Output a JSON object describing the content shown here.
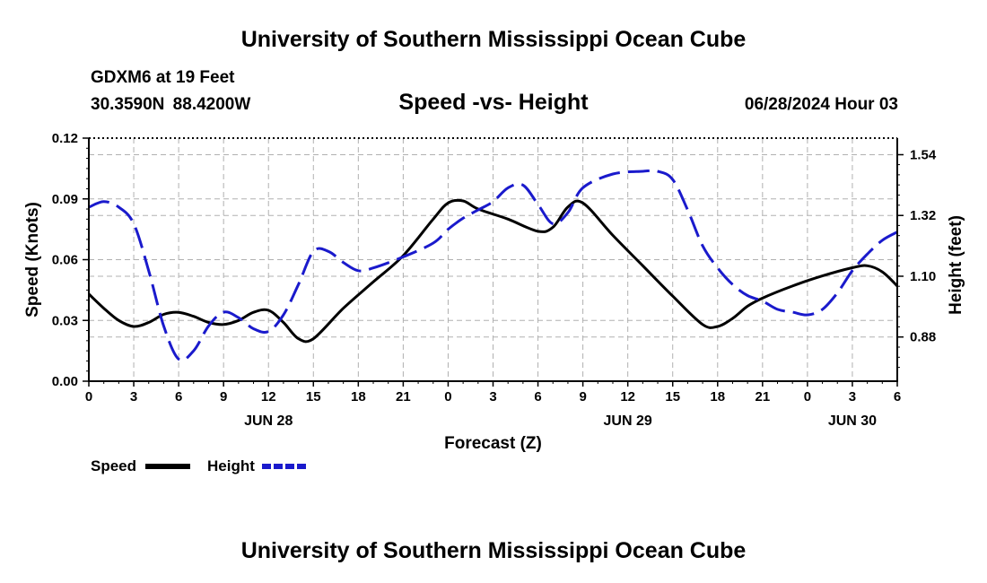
{
  "header": {
    "title": "University of Southern Mississippi Ocean Cube",
    "station": "GDXM6 at 19 Feet",
    "coordinates": "30.3590N  88.4200W",
    "subtitle": "Speed -vs- Height",
    "datetime": "06/28/2024 Hour 03"
  },
  "footer": {
    "title": "University of Southern Mississippi Ocean Cube"
  },
  "colors": {
    "speed": "#000000",
    "height": "#1a1acc",
    "grid": "#b0b0b0"
  },
  "chart_data": {
    "type": "line",
    "title": "Speed -vs- Height",
    "xlabel": "Forecast (Z)",
    "ylabel": "Speed (Knots)",
    "y2label": "Height (feet)",
    "x_units": "hours since 2024-06-28 00Z",
    "xlim": [
      0,
      54
    ],
    "ylim": [
      0,
      0.12
    ],
    "y2lim": [
      0.72,
      1.6
    ],
    "xticks": [
      0,
      3,
      6,
      9,
      12,
      15,
      18,
      21,
      24,
      27,
      30,
      33,
      36,
      39,
      42,
      45,
      48,
      51,
      54
    ],
    "xtick_labels": [
      "0",
      "3",
      "6",
      "9",
      "12",
      "15",
      "18",
      "21",
      "0",
      "3",
      "6",
      "9",
      "12",
      "15",
      "18",
      "21",
      "0",
      "3",
      "6"
    ],
    "yticks": [
      0,
      0.03,
      0.06,
      0.09,
      0.12
    ],
    "ytick_labels": [
      "0.00",
      "0.03",
      "0.06",
      "0.09",
      "0.12"
    ],
    "y2ticks": [
      0.88,
      1.1,
      1.32,
      1.54
    ],
    "y2tick_labels": [
      "0.88",
      "1.10",
      "1.32",
      "1.54"
    ],
    "day_labels": [
      {
        "x": 12,
        "label": "JUN 28"
      },
      {
        "x": 36,
        "label": "JUN 29"
      },
      {
        "x": 51,
        "label": "JUN 30"
      }
    ],
    "legend": [
      "Speed",
      "Height"
    ],
    "series": [
      {
        "name": "Speed",
        "axis": "left",
        "style": "solid",
        "x": [
          0,
          1,
          2,
          3,
          4,
          5,
          6,
          7,
          8,
          9,
          10,
          11,
          12,
          13,
          14,
          15,
          17,
          19,
          21,
          23,
          24,
          25,
          26,
          28,
          30,
          31,
          32,
          33,
          35,
          37,
          39,
          41,
          42,
          43,
          44,
          45,
          47,
          49,
          51,
          52,
          53,
          54
        ],
        "values": [
          0.043,
          0.036,
          0.03,
          0.027,
          0.029,
          0.033,
          0.034,
          0.032,
          0.029,
          0.028,
          0.03,
          0.034,
          0.035,
          0.029,
          0.021,
          0.021,
          0.036,
          0.049,
          0.062,
          0.08,
          0.088,
          0.089,
          0.085,
          0.08,
          0.074,
          0.076,
          0.086,
          0.088,
          0.072,
          0.057,
          0.042,
          0.028,
          0.027,
          0.031,
          0.037,
          0.041,
          0.047,
          0.052,
          0.056,
          0.057,
          0.054,
          0.047
        ]
      },
      {
        "name": "Height",
        "axis": "right",
        "style": "dashed",
        "x": [
          0,
          1,
          2,
          3,
          4,
          5,
          6,
          7,
          8,
          9,
          10,
          11,
          12,
          13,
          14,
          15,
          16,
          17,
          18,
          19,
          21,
          23,
          24,
          25,
          26,
          27,
          28,
          29,
          30,
          31,
          32,
          33,
          35,
          37,
          38,
          39,
          40,
          41,
          42,
          43,
          44,
          45,
          46,
          47,
          48,
          49,
          50,
          51,
          52,
          53,
          54
        ],
        "values": [
          1.35,
          1.37,
          1.35,
          1.29,
          1.12,
          0.92,
          0.8,
          0.83,
          0.92,
          0.97,
          0.95,
          0.91,
          0.9,
          0.96,
          1.07,
          1.19,
          1.19,
          1.15,
          1.12,
          1.13,
          1.17,
          1.22,
          1.27,
          1.31,
          1.34,
          1.37,
          1.42,
          1.43,
          1.36,
          1.29,
          1.33,
          1.42,
          1.47,
          1.48,
          1.48,
          1.45,
          1.34,
          1.21,
          1.13,
          1.07,
          1.03,
          1.01,
          0.98,
          0.97,
          0.96,
          0.98,
          1.04,
          1.12,
          1.18,
          1.23,
          1.26
        ]
      }
    ]
  }
}
